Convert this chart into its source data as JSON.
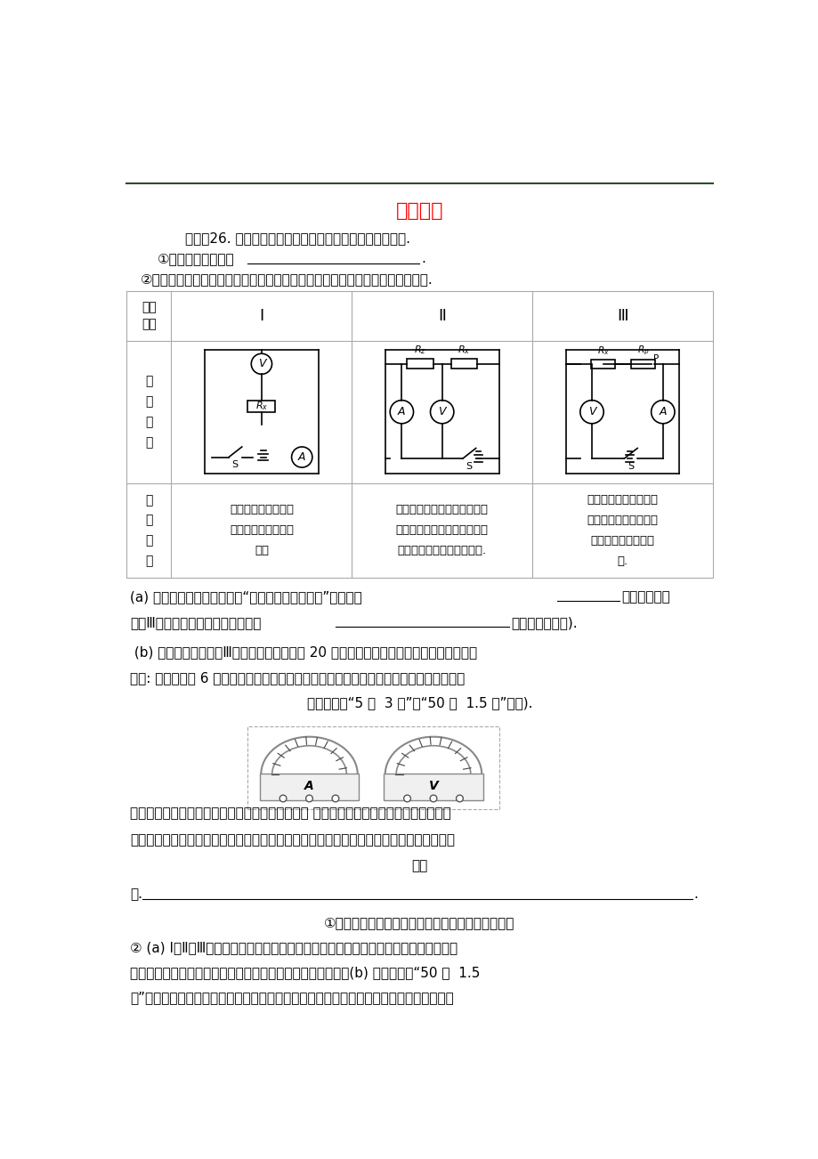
{
  "title": "电学实验",
  "title_color": "#FF0000",
  "title_fontsize": 16,
  "bg_color": "#FFFFFF",
  "line1": "静安：26. 某小组同学做「用电流表、电压表测电际」实验.",
  "line2": "①该实验的目的是：",
  "line3": "②为进行多次实验，三位同学各自设计了三个不同的实验方案，简述如下表所示.",
  "col1_design": "通过改变串联电池的\n节数改变电源两端的\n电压",
  "col2_design": "电源电压保持不变，待测电际\n与已知际値的定値电际串联，\n并换用际値不同的定値电际.",
  "col3_design": "电源电压保持不变，待\n测电际与滑动变际器串\n联，移动变际器的滑\n片.",
  "para_a": "(a) 上述三个方案中，能实现“多次实验，减小误差”的方案有",
  "para_a2": "（填序号）；",
  "para_a3": "方案Ⅲ与另两个方案相比，优点有：",
  "para_a4": "（写出两点即可).",
  "para_b1": " (b) 小明同学根据方案Ⅲ，准备测量际値约为 20 欧的电际，实验所提供的器材齐全完好，",
  "para_b2": "其中: 电源电压为 6 伏且保持不变，电流表、电压表规格如图所示，滑动变际器有两种规格",
  "para_b3": "（分别标有“5 欧  3 安”和“50 欧  1.5 安”字样).",
  "para_c1": "小明对所提供两种规格的滑动变际器，提出了问题 实验中，两种变际器是可以随意用一个",
  "para_c2": "变际器，还是其中一个更适合实验？请你根据实验的相关条件，帮助小明解决问题并简要说",
  "para_c3": "明理",
  "para_d": "由.",
  "answer1": "①该实验的目的是要学会用电流表、电压表测电际；",
  "answer2": "② (a) Ⅰ、Ⅱ、Ⅲ；多次实验时，电路不需要重新连接，操作简便；待测电际两端的电压",
  "answer3": "及通过的电流，可以在一段范围内连续变化，记录数据简便；(b) 应选择标有“50 欧  1.5",
  "answer4": "安”的滑动变际器；理由：可使待测电际两端的电压及通过的电流的变化范围更大，方便读"
}
